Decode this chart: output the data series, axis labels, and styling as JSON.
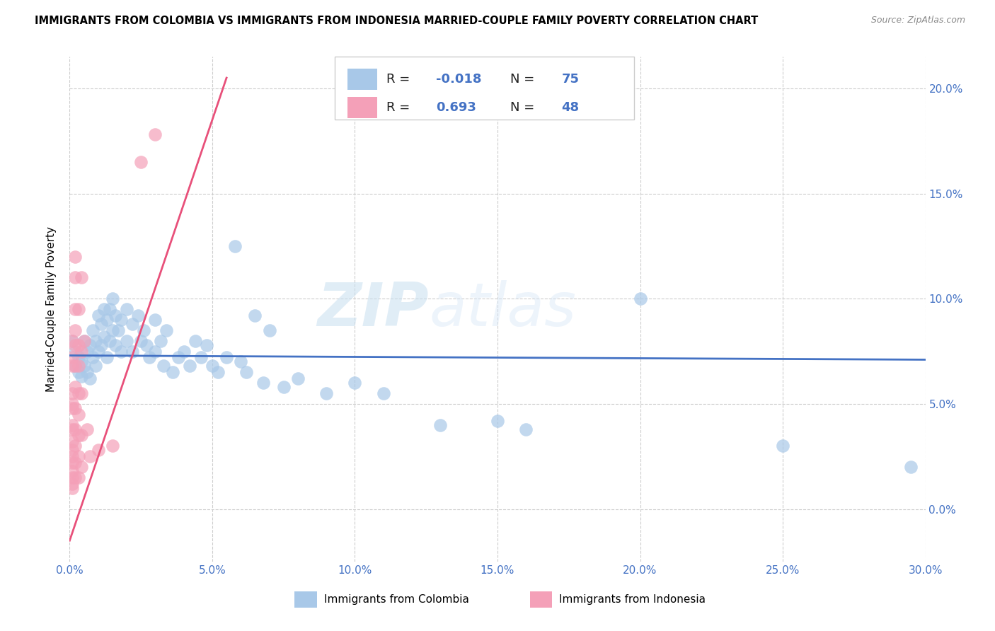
{
  "title": "IMMIGRANTS FROM COLOMBIA VS IMMIGRANTS FROM INDONESIA MARRIED-COUPLE FAMILY POVERTY CORRELATION CHART",
  "source": "Source: ZipAtlas.com",
  "xlabel_colombia": "Immigrants from Colombia",
  "xlabel_indonesia": "Immigrants from Indonesia",
  "ylabel": "Married-Couple Family Poverty",
  "watermark_zip": "ZIP",
  "watermark_atlas": "atlas",
  "colombia_R": -0.018,
  "colombia_N": 75,
  "indonesia_R": 0.693,
  "indonesia_N": 48,
  "xlim": [
    0.0,
    0.3
  ],
  "ylim": [
    -0.025,
    0.215
  ],
  "yticks": [
    0.0,
    0.05,
    0.1,
    0.15,
    0.2
  ],
  "xticks": [
    0.0,
    0.05,
    0.1,
    0.15,
    0.2,
    0.25,
    0.3
  ],
  "colombia_color": "#a8c8e8",
  "indonesia_color": "#f4a0b8",
  "colombia_line_color": "#4472c4",
  "indonesia_line_color": "#e8507a",
  "colombia_line_x": [
    0.0,
    0.3
  ],
  "colombia_line_y": [
    0.073,
    0.071
  ],
  "indonesia_line_x": [
    0.0,
    0.055
  ],
  "indonesia_line_y": [
    -0.015,
    0.205
  ],
  "colombia_scatter": [
    [
      0.001,
      0.08
    ],
    [
      0.002,
      0.075
    ],
    [
      0.002,
      0.068
    ],
    [
      0.003,
      0.065
    ],
    [
      0.003,
      0.072
    ],
    [
      0.004,
      0.07
    ],
    [
      0.004,
      0.063
    ],
    [
      0.005,
      0.08
    ],
    [
      0.005,
      0.068
    ],
    [
      0.006,
      0.075
    ],
    [
      0.006,
      0.065
    ],
    [
      0.007,
      0.078
    ],
    [
      0.007,
      0.062
    ],
    [
      0.008,
      0.085
    ],
    [
      0.008,
      0.072
    ],
    [
      0.009,
      0.08
    ],
    [
      0.009,
      0.068
    ],
    [
      0.01,
      0.092
    ],
    [
      0.01,
      0.075
    ],
    [
      0.011,
      0.088
    ],
    [
      0.011,
      0.078
    ],
    [
      0.012,
      0.095
    ],
    [
      0.012,
      0.082
    ],
    [
      0.013,
      0.09
    ],
    [
      0.013,
      0.072
    ],
    [
      0.014,
      0.095
    ],
    [
      0.014,
      0.08
    ],
    [
      0.015,
      0.1
    ],
    [
      0.015,
      0.085
    ],
    [
      0.016,
      0.092
    ],
    [
      0.016,
      0.078
    ],
    [
      0.017,
      0.085
    ],
    [
      0.018,
      0.09
    ],
    [
      0.018,
      0.075
    ],
    [
      0.02,
      0.095
    ],
    [
      0.02,
      0.08
    ],
    [
      0.022,
      0.088
    ],
    [
      0.022,
      0.075
    ],
    [
      0.024,
      0.092
    ],
    [
      0.025,
      0.08
    ],
    [
      0.026,
      0.085
    ],
    [
      0.027,
      0.078
    ],
    [
      0.028,
      0.072
    ],
    [
      0.03,
      0.09
    ],
    [
      0.03,
      0.075
    ],
    [
      0.032,
      0.08
    ],
    [
      0.033,
      0.068
    ],
    [
      0.034,
      0.085
    ],
    [
      0.036,
      0.065
    ],
    [
      0.038,
      0.072
    ],
    [
      0.04,
      0.075
    ],
    [
      0.042,
      0.068
    ],
    [
      0.044,
      0.08
    ],
    [
      0.046,
      0.072
    ],
    [
      0.048,
      0.078
    ],
    [
      0.05,
      0.068
    ],
    [
      0.052,
      0.065
    ],
    [
      0.055,
      0.072
    ],
    [
      0.058,
      0.125
    ],
    [
      0.06,
      0.07
    ],
    [
      0.062,
      0.065
    ],
    [
      0.065,
      0.092
    ],
    [
      0.068,
      0.06
    ],
    [
      0.07,
      0.085
    ],
    [
      0.075,
      0.058
    ],
    [
      0.08,
      0.062
    ],
    [
      0.09,
      0.055
    ],
    [
      0.1,
      0.06
    ],
    [
      0.11,
      0.055
    ],
    [
      0.13,
      0.04
    ],
    [
      0.15,
      0.042
    ],
    [
      0.16,
      0.038
    ],
    [
      0.2,
      0.1
    ],
    [
      0.25,
      0.03
    ],
    [
      0.295,
      0.02
    ]
  ],
  "indonesia_scatter": [
    [
      0.001,
      0.08
    ],
    [
      0.001,
      0.072
    ],
    [
      0.001,
      0.068
    ],
    [
      0.001,
      0.055
    ],
    [
      0.001,
      0.05
    ],
    [
      0.001,
      0.048
    ],
    [
      0.001,
      0.04
    ],
    [
      0.001,
      0.038
    ],
    [
      0.001,
      0.032
    ],
    [
      0.001,
      0.028
    ],
    [
      0.001,
      0.025
    ],
    [
      0.001,
      0.022
    ],
    [
      0.001,
      0.018
    ],
    [
      0.001,
      0.015
    ],
    [
      0.001,
      0.012
    ],
    [
      0.001,
      0.01
    ],
    [
      0.002,
      0.12
    ],
    [
      0.002,
      0.11
    ],
    [
      0.002,
      0.095
    ],
    [
      0.002,
      0.085
    ],
    [
      0.002,
      0.078
    ],
    [
      0.002,
      0.068
    ],
    [
      0.002,
      0.058
    ],
    [
      0.002,
      0.048
    ],
    [
      0.002,
      0.038
    ],
    [
      0.002,
      0.03
    ],
    [
      0.002,
      0.022
    ],
    [
      0.002,
      0.015
    ],
    [
      0.003,
      0.095
    ],
    [
      0.003,
      0.078
    ],
    [
      0.003,
      0.068
    ],
    [
      0.003,
      0.055
    ],
    [
      0.003,
      0.045
    ],
    [
      0.003,
      0.035
    ],
    [
      0.003,
      0.025
    ],
    [
      0.003,
      0.015
    ],
    [
      0.004,
      0.11
    ],
    [
      0.004,
      0.075
    ],
    [
      0.004,
      0.055
    ],
    [
      0.004,
      0.035
    ],
    [
      0.004,
      0.02
    ],
    [
      0.005,
      0.08
    ],
    [
      0.006,
      0.038
    ],
    [
      0.007,
      0.025
    ],
    [
      0.025,
      0.165
    ],
    [
      0.03,
      0.178
    ],
    [
      0.01,
      0.028
    ],
    [
      0.015,
      0.03
    ]
  ]
}
